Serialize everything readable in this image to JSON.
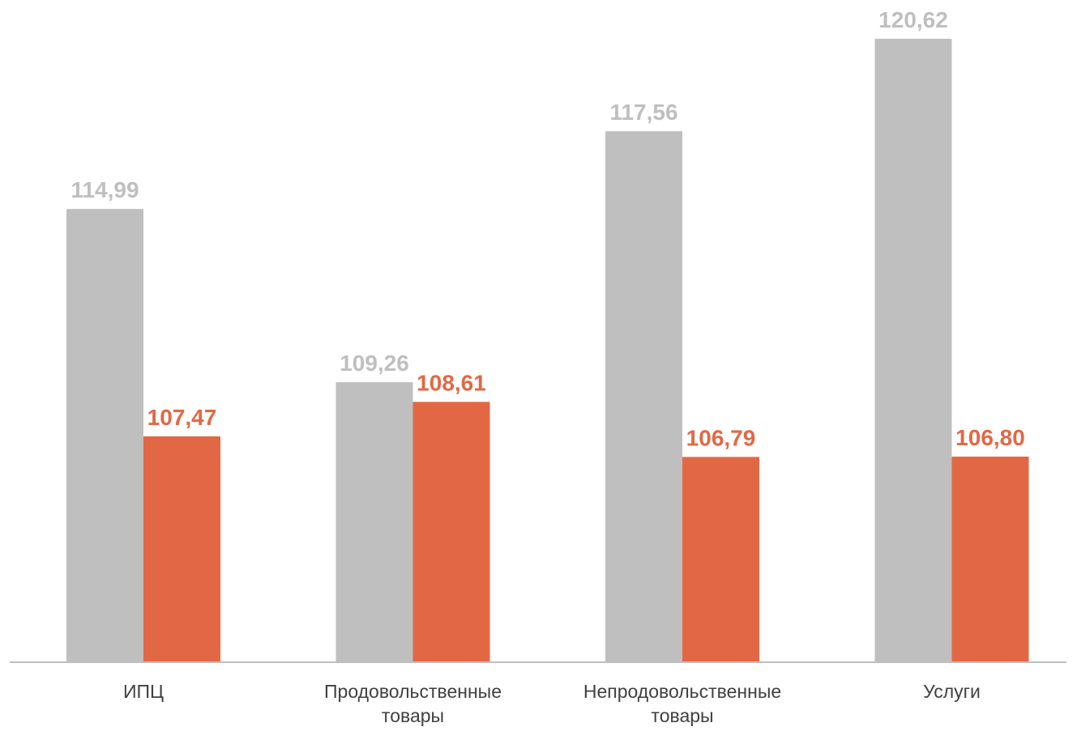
{
  "colors": {
    "series_1": "#bfbfbf",
    "series_2": "#e26845",
    "axis": "#bfbfbf",
    "category_text": "#404040"
  },
  "chart_data": {
    "type": "bar",
    "title": "",
    "xlabel": "",
    "ylabel": "",
    "ylim": [
      100,
      121
    ],
    "grid": false,
    "legend": "none",
    "categories": [
      [
        "ИПЦ"
      ],
      [
        "Продовольственные",
        "товары"
      ],
      [
        "Непродовольственные",
        "товары"
      ],
      [
        "Услуги"
      ]
    ],
    "series": [
      {
        "values": [
          114.99,
          109.26,
          117.56,
          120.62
        ],
        "labels": [
          "114,99",
          "109,26",
          "117,56",
          "120,62"
        ],
        "color": "#bfbfbf"
      },
      {
        "values": [
          107.47,
          108.61,
          106.79,
          106.8
        ],
        "labels": [
          "107,47",
          "108,61",
          "106,79",
          "106,80"
        ],
        "color": "#e26845"
      }
    ]
  }
}
